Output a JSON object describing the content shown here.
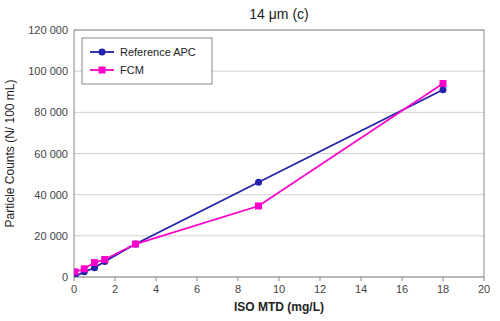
{
  "chart_data": {
    "type": "line",
    "title": "14 μm (c)",
    "xlabel": "ISO MTD (mg/L)",
    "ylabel": "Particle Counts (N/ 100 mL)",
    "x": [
      0.05,
      0.5,
      1.0,
      1.5,
      3.0,
      9.0,
      18.0
    ],
    "series": [
      {
        "name": "Reference APC",
        "color": "#2222AA",
        "marker": "circle",
        "values": [
          200,
          2500,
          4500,
          7500,
          16000,
          46000,
          91000
        ]
      },
      {
        "name": "FCM",
        "color": "#FF00CC",
        "marker": "square",
        "values": [
          2500,
          4000,
          7000,
          8500,
          16000,
          34500,
          94000
        ]
      }
    ],
    "xlim": [
      0,
      20
    ],
    "ylim": [
      0,
      120000
    ],
    "xticks": [
      0,
      2,
      4,
      6,
      8,
      10,
      12,
      14,
      16,
      18,
      20
    ],
    "yticks": [
      0,
      {
        "value": 20000,
        "label": "20 000"
      },
      {
        "value": 40000,
        "label": "40 000"
      },
      {
        "value": 60000,
        "label": "60 000"
      },
      {
        "value": 80000,
        "label": "80 000"
      },
      {
        "value": 100000,
        "label": "100 000"
      },
      {
        "value": 120000,
        "label": "120 000"
      }
    ],
    "grid": true,
    "legend": "upper left"
  }
}
